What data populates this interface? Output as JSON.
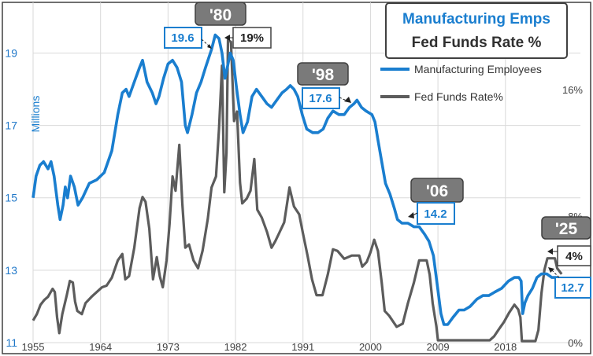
{
  "colors": {
    "manufacturing": "#1a7ecf",
    "fed_funds": "#5c5c5c",
    "blue_text": "#1a7ecf",
    "gray_box": "#7a7a7a",
    "frame": "#404040",
    "grid": "#d9d9d9"
  },
  "chart_data": {
    "type": "line",
    "title": "Manufacturing Emps",
    "subtitle": "Fed Funds Rate %",
    "ylabel": "Millions",
    "xlim": [
      1955,
      2028
    ],
    "ylim_left": [
      11,
      20.4
    ],
    "ylim_right": [
      0,
      21.5
    ],
    "x_ticks": [
      1955,
      1964,
      1973,
      1982,
      1991,
      2000,
      2009,
      2018
    ],
    "x_tick_labels": [
      "1955",
      "1964",
      "1973",
      "1982",
      "1991",
      "2000",
      "2009",
      "2018"
    ],
    "left_ticks": [
      11,
      13,
      15,
      17,
      19
    ],
    "left_tick_labels": [
      "11",
      "13",
      "15",
      "17",
      "19"
    ],
    "right_ticks": [
      0,
      8,
      16
    ],
    "right_tick_labels": [
      "0%",
      "8%",
      "16%"
    ],
    "legend": [
      "Manufacturing Employees",
      "Fed Funds Rate%"
    ],
    "series": [
      {
        "name": "Manufacturing Employees",
        "axis": "left",
        "points": [
          [
            1955.0,
            15.0
          ],
          [
            1955.4,
            15.6
          ],
          [
            1955.9,
            15.9
          ],
          [
            1956.4,
            16.0
          ],
          [
            1957.0,
            15.8
          ],
          [
            1957.4,
            16.0
          ],
          [
            1957.8,
            15.6
          ],
          [
            1958.3,
            14.8
          ],
          [
            1958.6,
            14.4
          ],
          [
            1959.0,
            14.8
          ],
          [
            1959.3,
            15.3
          ],
          [
            1959.6,
            15.0
          ],
          [
            1960.0,
            15.6
          ],
          [
            1960.5,
            15.3
          ],
          [
            1961.0,
            14.8
          ],
          [
            1961.6,
            15.0
          ],
          [
            1962.5,
            15.4
          ],
          [
            1963.5,
            15.5
          ],
          [
            1964.5,
            15.7
          ],
          [
            1965.5,
            16.3
          ],
          [
            1966.3,
            17.3
          ],
          [
            1966.9,
            17.9
          ],
          [
            1967.4,
            18.0
          ],
          [
            1967.8,
            17.8
          ],
          [
            1968.5,
            18.2
          ],
          [
            1969.2,
            18.6
          ],
          [
            1969.6,
            18.8
          ],
          [
            1970.2,
            18.2
          ],
          [
            1970.9,
            17.9
          ],
          [
            1971.4,
            17.6
          ],
          [
            1971.8,
            17.8
          ],
          [
            1972.4,
            18.3
          ],
          [
            1973.0,
            18.7
          ],
          [
            1973.6,
            18.8
          ],
          [
            1974.2,
            18.6
          ],
          [
            1974.8,
            18.2
          ],
          [
            1975.3,
            17.0
          ],
          [
            1975.6,
            16.8
          ],
          [
            1976.2,
            17.3
          ],
          [
            1976.8,
            17.9
          ],
          [
            1977.4,
            18.2
          ],
          [
            1978.0,
            18.6
          ],
          [
            1978.8,
            19.1
          ],
          [
            1979.3,
            19.5
          ],
          [
            1979.8,
            19.4
          ],
          [
            1980.2,
            19.0
          ],
          [
            1980.6,
            18.3
          ],
          [
            1980.9,
            18.6
          ],
          [
            1981.3,
            19.0
          ],
          [
            1981.7,
            18.8
          ],
          [
            1982.1,
            18.1
          ],
          [
            1982.6,
            17.3
          ],
          [
            1983.0,
            16.8
          ],
          [
            1983.6,
            17.1
          ],
          [
            1984.2,
            17.8
          ],
          [
            1984.8,
            18.0
          ],
          [
            1985.5,
            17.8
          ],
          [
            1986.2,
            17.6
          ],
          [
            1986.8,
            17.5
          ],
          [
            1987.5,
            17.7
          ],
          [
            1988.2,
            17.9
          ],
          [
            1988.8,
            18.0
          ],
          [
            1989.3,
            18.1
          ],
          [
            1989.8,
            18.0
          ],
          [
            1990.3,
            17.8
          ],
          [
            1990.9,
            17.3
          ],
          [
            1991.5,
            16.9
          ],
          [
            1992.3,
            16.8
          ],
          [
            1993.0,
            16.8
          ],
          [
            1993.7,
            16.9
          ],
          [
            1994.3,
            17.2
          ],
          [
            1995.0,
            17.4
          ],
          [
            1995.8,
            17.3
          ],
          [
            1996.5,
            17.3
          ],
          [
            1997.2,
            17.5
          ],
          [
            1997.8,
            17.6
          ],
          [
            1998.2,
            17.7
          ],
          [
            1998.8,
            17.5
          ],
          [
            1999.4,
            17.4
          ],
          [
            2000.2,
            17.3
          ],
          [
            2000.6,
            17.1
          ],
          [
            2001.0,
            16.6
          ],
          [
            2001.5,
            16.0
          ],
          [
            2002.0,
            15.4
          ],
          [
            2002.6,
            15.1
          ],
          [
            2003.2,
            14.7
          ],
          [
            2003.6,
            14.4
          ],
          [
            2004.2,
            14.3
          ],
          [
            2005.0,
            14.3
          ],
          [
            2005.8,
            14.2
          ],
          [
            2006.5,
            14.2
          ],
          [
            2007.2,
            14.0
          ],
          [
            2007.8,
            13.8
          ],
          [
            2008.4,
            13.4
          ],
          [
            2008.9,
            12.6
          ],
          [
            2009.4,
            11.8
          ],
          [
            2009.8,
            11.5
          ],
          [
            2010.3,
            11.5
          ],
          [
            2011.0,
            11.7
          ],
          [
            2011.8,
            11.9
          ],
          [
            2012.5,
            11.9
          ],
          [
            2013.3,
            12.0
          ],
          [
            2014.2,
            12.2
          ],
          [
            2015.0,
            12.3
          ],
          [
            2015.8,
            12.3
          ],
          [
            2016.6,
            12.4
          ],
          [
            2017.5,
            12.5
          ],
          [
            2018.4,
            12.7
          ],
          [
            2019.2,
            12.8
          ],
          [
            2019.8,
            12.8
          ],
          [
            2020.1,
            12.7
          ],
          [
            2020.3,
            11.8
          ],
          [
            2020.6,
            12.1
          ],
          [
            2021.0,
            12.3
          ],
          [
            2021.6,
            12.5
          ],
          [
            2022.2,
            12.8
          ],
          [
            2022.8,
            12.9
          ],
          [
            2023.5,
            12.9
          ],
          [
            2024.2,
            12.8
          ],
          [
            2024.8,
            12.8
          ],
          [
            2025.5,
            12.7
          ]
        ]
      },
      {
        "name": "Fed Funds Rate%",
        "axis": "right",
        "points": [
          [
            1955.0,
            1.4
          ],
          [
            1955.5,
            1.8
          ],
          [
            1956.0,
            2.4
          ],
          [
            1956.5,
            2.7
          ],
          [
            1957.0,
            2.9
          ],
          [
            1957.6,
            3.4
          ],
          [
            1957.9,
            3.2
          ],
          [
            1958.2,
            1.6
          ],
          [
            1958.5,
            0.6
          ],
          [
            1958.9,
            1.8
          ],
          [
            1959.5,
            3.0
          ],
          [
            1959.9,
            3.9
          ],
          [
            1960.3,
            3.8
          ],
          [
            1960.6,
            2.6
          ],
          [
            1960.9,
            2.0
          ],
          [
            1961.5,
            1.8
          ],
          [
            1962.0,
            2.5
          ],
          [
            1962.8,
            2.9
          ],
          [
            1963.5,
            3.2
          ],
          [
            1964.2,
            3.5
          ],
          [
            1964.8,
            3.6
          ],
          [
            1965.5,
            4.1
          ],
          [
            1966.3,
            5.2
          ],
          [
            1966.9,
            5.6
          ],
          [
            1967.3,
            4.0
          ],
          [
            1967.8,
            4.2
          ],
          [
            1968.5,
            6.0
          ],
          [
            1969.2,
            8.5
          ],
          [
            1969.6,
            9.2
          ],
          [
            1970.0,
            8.9
          ],
          [
            1970.5,
            7.2
          ],
          [
            1971.0,
            4.0
          ],
          [
            1971.5,
            5.4
          ],
          [
            1971.9,
            4.2
          ],
          [
            1972.3,
            3.5
          ],
          [
            1972.8,
            5.2
          ],
          [
            1973.2,
            7.5
          ],
          [
            1973.6,
            10.5
          ],
          [
            1974.0,
            9.6
          ],
          [
            1974.5,
            12.5
          ],
          [
            1974.9,
            8.8
          ],
          [
            1975.3,
            6.0
          ],
          [
            1975.8,
            6.2
          ],
          [
            1976.4,
            5.2
          ],
          [
            1977.0,
            4.7
          ],
          [
            1977.6,
            5.8
          ],
          [
            1978.3,
            7.8
          ],
          [
            1978.8,
            9.8
          ],
          [
            1979.4,
            10.5
          ],
          [
            1979.8,
            13.5
          ],
          [
            1980.2,
            17.5
          ],
          [
            1980.5,
            9.5
          ],
          [
            1980.8,
            12.0
          ],
          [
            1981.0,
            19.1
          ],
          [
            1981.4,
            19.0
          ],
          [
            1981.8,
            14.0
          ],
          [
            1982.2,
            14.6
          ],
          [
            1982.6,
            10.1
          ],
          [
            1982.9,
            8.8
          ],
          [
            1983.5,
            9.1
          ],
          [
            1984.0,
            9.6
          ],
          [
            1984.5,
            11.6
          ],
          [
            1984.9,
            8.4
          ],
          [
            1985.5,
            7.9
          ],
          [
            1986.2,
            7.0
          ],
          [
            1986.8,
            6.0
          ],
          [
            1987.3,
            6.4
          ],
          [
            1987.8,
            6.9
          ],
          [
            1988.5,
            7.6
          ],
          [
            1989.2,
            9.8
          ],
          [
            1989.8,
            8.6
          ],
          [
            1990.5,
            8.1
          ],
          [
            1991.0,
            6.9
          ],
          [
            1991.6,
            5.5
          ],
          [
            1992.2,
            4.0
          ],
          [
            1992.8,
            3.0
          ],
          [
            1993.6,
            3.0
          ],
          [
            1994.3,
            4.3
          ],
          [
            1995.0,
            5.9
          ],
          [
            1995.6,
            5.8
          ],
          [
            1996.5,
            5.3
          ],
          [
            1997.5,
            5.5
          ],
          [
            1998.5,
            5.5
          ],
          [
            1998.9,
            4.8
          ],
          [
            1999.5,
            5.1
          ],
          [
            2000.0,
            5.7
          ],
          [
            2000.5,
            6.5
          ],
          [
            2001.0,
            5.8
          ],
          [
            2001.5,
            3.8
          ],
          [
            2001.9,
            2.0
          ],
          [
            2002.5,
            1.7
          ],
          [
            2003.5,
            1.0
          ],
          [
            2004.3,
            1.2
          ],
          [
            2005.0,
            2.5
          ],
          [
            2005.8,
            3.8
          ],
          [
            2006.5,
            5.2
          ],
          [
            2007.5,
            5.2
          ],
          [
            2007.9,
            4.3
          ],
          [
            2008.3,
            2.5
          ],
          [
            2008.8,
            1.0
          ],
          [
            2009.0,
            0.15
          ],
          [
            2012.0,
            0.15
          ],
          [
            2015.9,
            0.15
          ],
          [
            2016.5,
            0.4
          ],
          [
            2017.2,
            0.9
          ],
          [
            2017.8,
            1.3
          ],
          [
            2018.5,
            1.9
          ],
          [
            2019.2,
            2.4
          ],
          [
            2019.7,
            2.1
          ],
          [
            2020.0,
            1.6
          ],
          [
            2020.2,
            0.1
          ],
          [
            2022.0,
            0.1
          ],
          [
            2022.4,
            0.8
          ],
          [
            2022.8,
            3.1
          ],
          [
            2023.2,
            4.6
          ],
          [
            2023.6,
            5.33
          ],
          [
            2024.6,
            5.33
          ],
          [
            2024.9,
            4.7
          ],
          [
            2025.5,
            4.33
          ]
        ]
      }
    ],
    "annotations": [
      {
        "era_label": "'80",
        "value_label": "19.6",
        "value_note": "19%"
      },
      {
        "era_label": "'98",
        "value_label": "17.6"
      },
      {
        "era_label": "'06",
        "value_label": "14.2"
      },
      {
        "era_label": "'25",
        "value_label": "12.7",
        "value_note": "4%"
      }
    ]
  }
}
